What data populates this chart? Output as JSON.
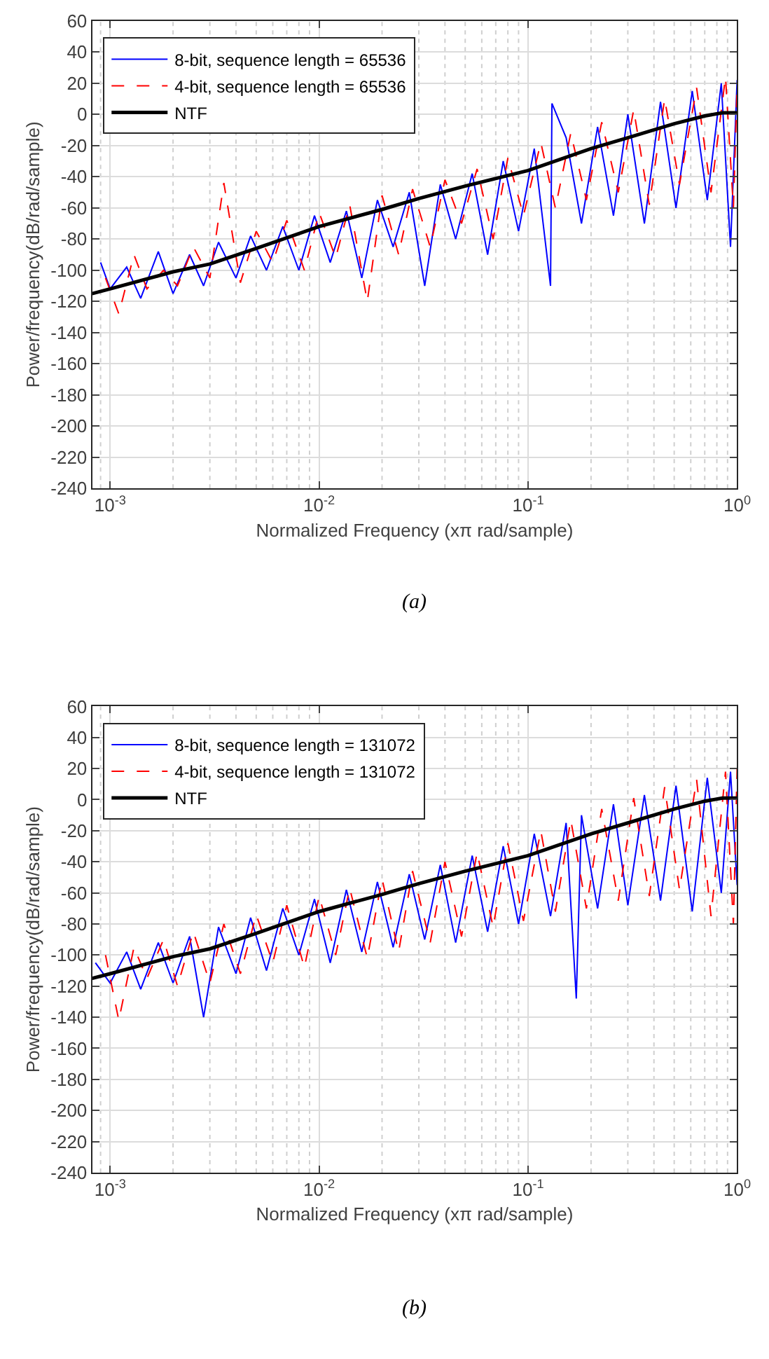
{
  "chart_data": [
    {
      "type": "line",
      "xlabel": "Normalized Frequency (xπ rad/sample)",
      "ylabel": "Power/frequency(dB/rad/sample)",
      "log": "x",
      "grid": true,
      "legend": "top left",
      "xlim": [
        0.00082,
        1
      ],
      "ylim": [
        -240,
        60
      ],
      "xticks": [
        {
          "value": 0.001,
          "label": "10$^{-3}$"
        },
        {
          "value": 0.01,
          "label": "10$^{-2}$"
        },
        {
          "value": 0.1,
          "label": "10$^{-1}$"
        },
        {
          "value": 1,
          "label": "10$^{0}$"
        }
      ],
      "yticks": [
        -240,
        -220,
        -200,
        -180,
        -160,
        -140,
        -120,
        -100,
        -80,
        -60,
        -40,
        -20,
        0,
        20,
        40,
        60
      ],
      "annotations": [
        "(a)"
      ],
      "series": [
        {
          "name": "8-bit, sequence length = 65536",
          "color": "#0000ff",
          "line_style": "solid",
          "x": [
            0.0009,
            0.001,
            0.0012,
            0.0014,
            0.0017,
            0.002,
            0.0024,
            0.0028,
            0.0033,
            0.004,
            0.0047,
            0.0056,
            0.0067,
            0.008,
            0.0095,
            0.0113,
            0.0135,
            0.016,
            0.019,
            0.0226,
            0.027,
            0.032,
            0.038,
            0.045,
            0.054,
            0.064,
            0.076,
            0.09,
            0.107,
            0.128,
            0.13,
            0.152,
            0.18,
            0.215,
            0.256,
            0.3,
            0.36,
            0.43,
            0.51,
            0.61,
            0.72,
            0.84,
            0.93,
            1.0
          ],
          "values": [
            -95,
            -112,
            -98,
            -118,
            -88,
            -115,
            -90,
            -110,
            -82,
            -105,
            -78,
            -100,
            -72,
            -100,
            -65,
            -95,
            -62,
            -105,
            -55,
            -85,
            -50,
            -110,
            -45,
            -80,
            -38,
            -90,
            -30,
            -75,
            -22,
            -110,
            7,
            -15,
            -70,
            -8,
            -65,
            0,
            -70,
            8,
            -60,
            15,
            -55,
            20,
            -85,
            22
          ]
        },
        {
          "name": "4-bit, sequence length = 65536",
          "color": "#ff0000",
          "line_style": "dashed",
          "x": [
            0.00095,
            0.0011,
            0.0013,
            0.0015,
            0.0018,
            0.0021,
            0.0025,
            0.003,
            0.0035,
            0.0042,
            0.005,
            0.006,
            0.007,
            0.0085,
            0.01,
            0.012,
            0.014,
            0.017,
            0.02,
            0.024,
            0.028,
            0.034,
            0.04,
            0.048,
            0.057,
            0.068,
            0.08,
            0.095,
            0.115,
            0.135,
            0.16,
            0.19,
            0.225,
            0.27,
            0.32,
            0.38,
            0.45,
            0.53,
            0.64,
            0.75,
            0.88,
            0.96,
            1.0
          ],
          "values": [
            -105,
            -128,
            -90,
            -112,
            -100,
            -110,
            -85,
            -105,
            -44,
            -108,
            -75,
            -95,
            -68,
            -100,
            -63,
            -92,
            -58,
            -120,
            -52,
            -90,
            -48,
            -85,
            -42,
            -70,
            -35,
            -80,
            -28,
            -65,
            -18,
            -60,
            -12,
            -55,
            -5,
            -50,
            3,
            -58,
            10,
            -45,
            17,
            -50,
            24,
            -60,
            18
          ]
        },
        {
          "name": "NTF",
          "color": "#000000",
          "line_style": "solid",
          "x": [
            0.00082,
            0.001,
            0.002,
            0.003,
            0.005,
            0.01,
            0.02,
            0.03,
            0.05,
            0.1,
            0.2,
            0.3,
            0.5,
            0.7,
            0.85,
            1.0
          ],
          "values": [
            -115,
            -112,
            -101,
            -96,
            -86,
            -72,
            -61,
            -54,
            -46,
            -36,
            -22,
            -15,
            -6,
            -1,
            1,
            1
          ]
        }
      ]
    },
    {
      "type": "line",
      "xlabel": "Normalized Frequency (xπ rad/sample)",
      "ylabel": "Power/frequency(dB/rad/sample)",
      "log": "x",
      "grid": true,
      "legend": "top left",
      "xlim": [
        0.00082,
        1
      ],
      "ylim": [
        -240,
        60
      ],
      "xticks": [
        {
          "value": 0.001,
          "label": "10$^{-3}$"
        },
        {
          "value": 0.01,
          "label": "10$^{-2}$"
        },
        {
          "value": 0.1,
          "label": "10$^{-1}$"
        },
        {
          "value": 1,
          "label": "10$^{0}$"
        }
      ],
      "yticks": [
        -240,
        -220,
        -200,
        -180,
        -160,
        -140,
        -120,
        -100,
        -80,
        -60,
        -40,
        -20,
        0,
        20,
        40,
        60
      ],
      "annotations": [
        "(b)"
      ],
      "series": [
        {
          "name": "8-bit, sequence length = 131072",
          "color": "#0000ff",
          "line_style": "solid",
          "x": [
            0.00085,
            0.001,
            0.0012,
            0.0014,
            0.0017,
            0.002,
            0.0024,
            0.0028,
            0.0033,
            0.004,
            0.0047,
            0.0056,
            0.0067,
            0.008,
            0.0095,
            0.0113,
            0.0135,
            0.016,
            0.019,
            0.0226,
            0.027,
            0.032,
            0.038,
            0.045,
            0.054,
            0.064,
            0.076,
            0.09,
            0.107,
            0.128,
            0.152,
            0.17,
            0.18,
            0.215,
            0.256,
            0.3,
            0.36,
            0.43,
            0.51,
            0.61,
            0.72,
            0.84,
            0.93,
            1.0
          ],
          "values": [
            -105,
            -118,
            -98,
            -122,
            -92,
            -118,
            -88,
            -140,
            -82,
            -112,
            -76,
            -110,
            -70,
            -100,
            -64,
            -105,
            -58,
            -98,
            -53,
            -95,
            -48,
            -90,
            -42,
            -92,
            -36,
            -85,
            -30,
            -80,
            -22,
            -75,
            -15,
            -128,
            -10,
            -70,
            -3,
            -68,
            3,
            -65,
            9,
            -72,
            14,
            -60,
            18,
            -55
          ]
        },
        {
          "name": "4-bit, sequence length = 131072",
          "color": "#ff0000",
          "line_style": "dashed",
          "x": [
            0.00095,
            0.0011,
            0.0013,
            0.0015,
            0.0018,
            0.0021,
            0.0025,
            0.003,
            0.0035,
            0.0042,
            0.005,
            0.006,
            0.007,
            0.0085,
            0.01,
            0.012,
            0.014,
            0.017,
            0.02,
            0.024,
            0.028,
            0.034,
            0.04,
            0.048,
            0.057,
            0.068,
            0.08,
            0.095,
            0.115,
            0.135,
            0.16,
            0.19,
            0.225,
            0.27,
            0.32,
            0.38,
            0.45,
            0.53,
            0.64,
            0.75,
            0.88,
            0.96,
            1.0
          ],
          "values": [
            -100,
            -142,
            -95,
            -115,
            -90,
            -120,
            -85,
            -118,
            -80,
            -112,
            -74,
            -105,
            -68,
            -108,
            -62,
            -100,
            -57,
            -102,
            -51,
            -98,
            -46,
            -92,
            -40,
            -88,
            -34,
            -82,
            -28,
            -78,
            -20,
            -72,
            -13,
            -70,
            -6,
            -65,
            1,
            -62,
            8,
            -58,
            13,
            -75,
            18,
            -80,
            20
          ]
        },
        {
          "name": "NTF",
          "color": "#000000",
          "line_style": "solid",
          "x": [
            0.00082,
            0.001,
            0.002,
            0.003,
            0.005,
            0.01,
            0.02,
            0.03,
            0.05,
            0.1,
            0.2,
            0.3,
            0.5,
            0.7,
            0.85,
            1.0
          ],
          "values": [
            -115,
            -112,
            -101,
            -96,
            -86,
            -72,
            -61,
            -54,
            -46,
            -36,
            -22,
            -15,
            -6,
            -1,
            1,
            1
          ]
        }
      ]
    }
  ]
}
